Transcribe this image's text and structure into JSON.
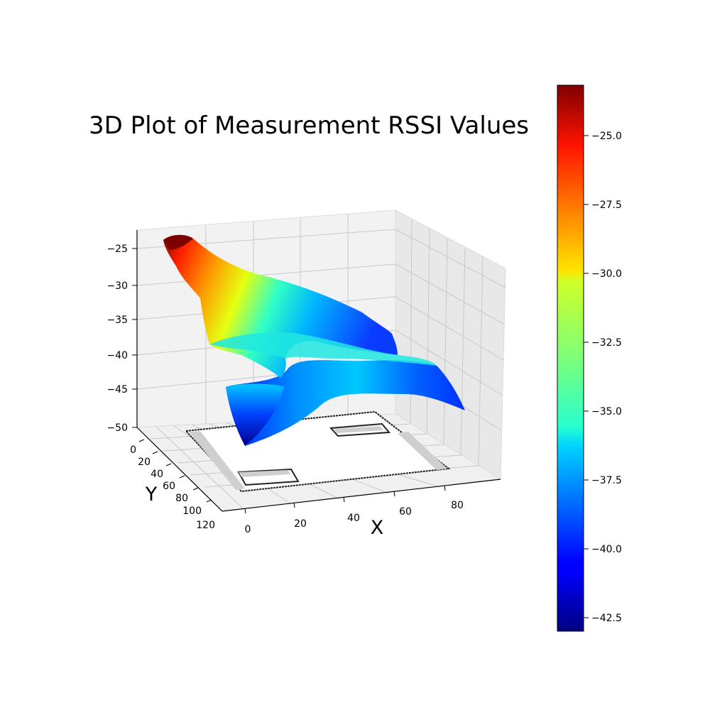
{
  "chart_data": {
    "type": "surface3d",
    "title": "3D Plot of Measurement RSSI Values",
    "xlabel": "X",
    "ylabel": "Y",
    "zlabel": "",
    "x_ticks": [
      "0",
      "20",
      "40",
      "60",
      "80"
    ],
    "y_ticks": [
      "0",
      "20",
      "40",
      "60",
      "80",
      "100",
      "120"
    ],
    "z_ticks": [
      "−25",
      "−30",
      "−35",
      "−40",
      "−45",
      "−50"
    ],
    "xlim": [
      0,
      95
    ],
    "ylim": [
      0,
      125
    ],
    "zlim": [
      -50,
      -22
    ],
    "grid": true,
    "colormap": "jet",
    "colorbar": {
      "range": [
        -43,
        -22.5
      ],
      "ticks": [
        "−25.0",
        "−27.5",
        "−30.0",
        "−32.5",
        "−35.0",
        "−37.5",
        "−40.0",
        "−42.5"
      ],
      "placement": "right"
    },
    "surface_profile": {
      "x": [
        0,
        10,
        20,
        30,
        40,
        50,
        60,
        70,
        80,
        90
      ],
      "z_far_edge": [
        -23,
        -26,
        -28,
        -30,
        -32,
        -34,
        -36,
        -38,
        -39,
        -40
      ],
      "z_near_edge": [
        -39,
        -41,
        -40,
        -39,
        -38,
        -38,
        -38,
        -39,
        -41,
        -42
      ]
    },
    "floor_map": "floor plan outline (walls) projected on the z = -50 plane"
  }
}
